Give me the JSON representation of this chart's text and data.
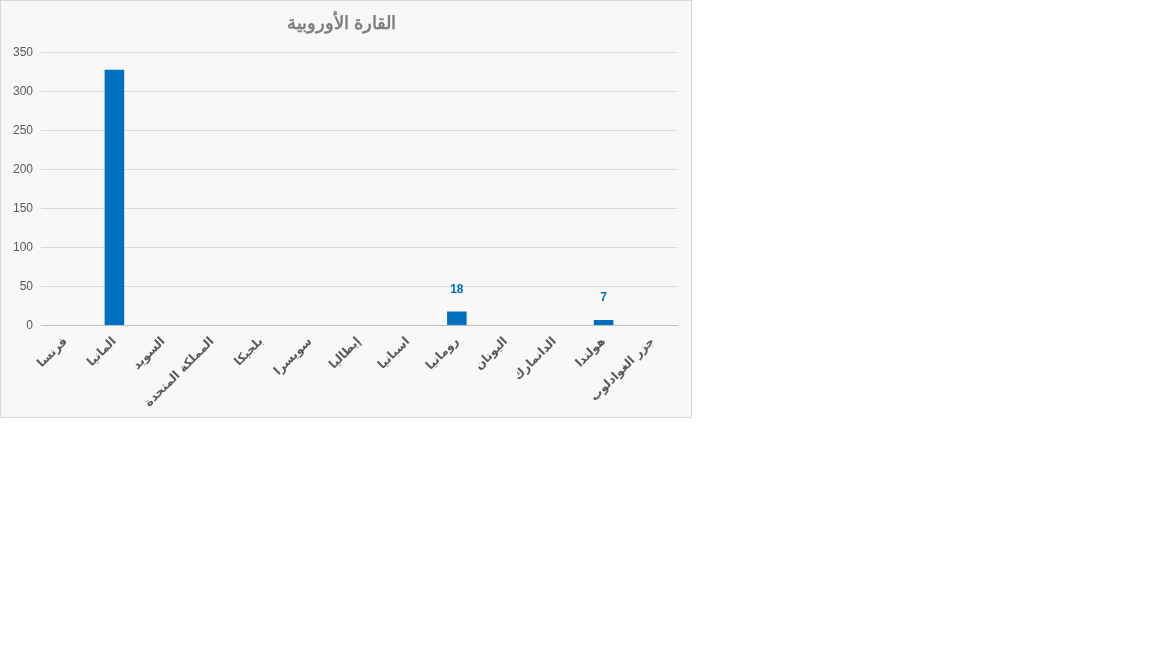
{
  "chart_data": {
    "type": "bar",
    "title": "القارة الأوروبية",
    "categories": [
      "فرنسا",
      "المانيا",
      "السويد",
      "المملكة المتحدة",
      "بلجيكا",
      "سويسرا",
      "إيطاليا",
      "اسبانيا",
      "رومانيا",
      "اليونان",
      "الدانمارك",
      "هولندا",
      "جزر الغوادلوب"
    ],
    "values": [
      0,
      328,
      0,
      0,
      0,
      0,
      0,
      0,
      18,
      0,
      0,
      7,
      0
    ],
    "value_labels": [
      null,
      null,
      null,
      null,
      null,
      null,
      null,
      null,
      "18",
      null,
      null,
      "7",
      null
    ],
    "color": "#0070c0",
    "ylim": [
      0,
      350
    ],
    "yticks": [
      0,
      50,
      100,
      150,
      200,
      250,
      300,
      350
    ],
    "grid": "y",
    "legend": false
  }
}
